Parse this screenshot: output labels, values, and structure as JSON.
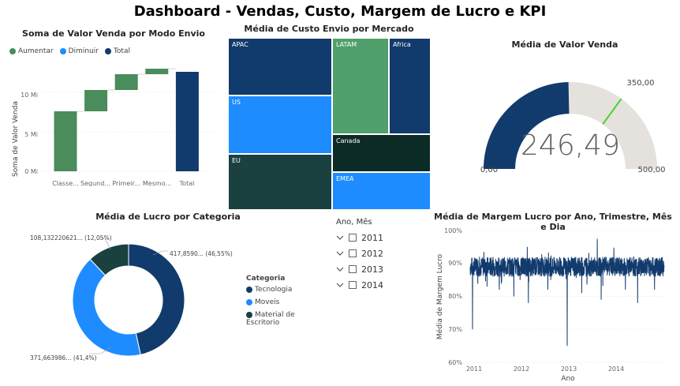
{
  "dashboard": {
    "title": "Dashboard - Vendas, Custo, Margem de Lucro e KPI"
  },
  "waterfall": {
    "title": "Soma de Valor Venda por Modo Envio",
    "legend": [
      {
        "label": "Aumentar",
        "color": "#4a8c5c"
      },
      {
        "label": "Diminuir",
        "color": "#1e8cff"
      },
      {
        "label": "Total",
        "color": "#123b6d"
      }
    ],
    "ylabel": "Soma de Valor Venda",
    "yticks": [
      "0 Mi",
      "5 Mi",
      "10 Mi"
    ],
    "xticks": [
      "Classe...",
      "Segund...",
      "Primeir...",
      "Mesmo...",
      "Total"
    ]
  },
  "treemap": {
    "title": "Média de Custo Envio por Mercado",
    "cells": [
      {
        "label": "APAC",
        "color": "#123b6d"
      },
      {
        "label": "LATAM",
        "color": "#4fa06a"
      },
      {
        "label": "Africa",
        "color": "#123b6d"
      },
      {
        "label": "US",
        "color": "#1e8cff"
      },
      {
        "label": "Canada",
        "color": "#0d2b26"
      },
      {
        "label": "EU",
        "color": "#1a4040"
      },
      {
        "label": "EMEA",
        "color": "#1e8cff"
      }
    ]
  },
  "gauge": {
    "title": "Média de Valor Venda",
    "value_label": "246,49",
    "min_label": "0,00",
    "max_label": "500,00",
    "target_label": "350,00",
    "value": 246.49,
    "min": 0,
    "max": 500,
    "target": 350,
    "fill_color": "#123b6d",
    "track_color": "#e5e1dc",
    "target_color": "#4cd137"
  },
  "donut": {
    "title": "Média de Lucro por Categoria",
    "legend_title": "Categoria",
    "slices": [
      {
        "name": "Tecnologia",
        "pct": 46.55,
        "color": "#123b6d",
        "label": "417,8590... (46,55%)"
      },
      {
        "name": "Moveis",
        "pct": 41.4,
        "color": "#1e8cff",
        "label": "371,663986... (41,4%)"
      },
      {
        "name": "Material de Escritorio",
        "pct": 12.05,
        "color": "#1a4040",
        "label": "108,132220621... (12,05%)"
      }
    ]
  },
  "slicer": {
    "title": "Ano, Mês",
    "items": [
      "2011",
      "2012",
      "2013",
      "2014"
    ]
  },
  "linechart": {
    "title": "Média de Margem Lucro por Ano, Trimestre, Mês e Dia",
    "ylabel": "Média de Margem Lucro",
    "xlabel": "Ano",
    "yticks": [
      "60%",
      "70%",
      "80%",
      "90%",
      "100%"
    ],
    "xticks": [
      "2011",
      "2012",
      "2013",
      "2014"
    ],
    "color": "#123b6d"
  },
  "chart_data": [
    {
      "type": "bar",
      "title": "Soma de Valor Venda por Modo Envio",
      "subtype": "waterfall",
      "categories": [
        "Classe...",
        "Segund...",
        "Primeir...",
        "Mesmo...",
        "Total"
      ],
      "values": [
        7.6,
        2.7,
        2.0,
        0.7,
        12.6
      ],
      "kind": [
        "increase",
        "increase",
        "increase",
        "increase",
        "total"
      ],
      "ylabel": "Soma de Valor Venda",
      "ylim": [
        0,
        14
      ]
    },
    {
      "type": "pie",
      "title": "Média de Lucro por Categoria",
      "categories": [
        "Tecnologia",
        "Moveis",
        "Material de Escritorio"
      ],
      "values": [
        46.55,
        41.4,
        12.05
      ]
    },
    {
      "type": "line",
      "title": "Média de Margem Lucro por Ano, Trimestre, Mês e Dia",
      "x": [
        "2011",
        "2012",
        "2013",
        "2014"
      ],
      "ylabel": "Média de Margem Lucro",
      "xlabel": "Ano",
      "ylim": [
        60,
        100
      ],
      "baseline": 89,
      "dips": [
        {
          "x": 2011.05,
          "y": 70
        },
        {
          "x": 2011.35,
          "y": 83
        },
        {
          "x": 2011.6,
          "y": 82
        },
        {
          "x": 2011.9,
          "y": 80
        },
        {
          "x": 2012.2,
          "y": 78
        },
        {
          "x": 2012.6,
          "y": 82
        },
        {
          "x": 2013.0,
          "y": 65
        },
        {
          "x": 2013.3,
          "y": 81
        },
        {
          "x": 2013.7,
          "y": 79
        },
        {
          "x": 2014.2,
          "y": 82
        },
        {
          "x": 2014.45,
          "y": 78
        },
        {
          "x": 2014.8,
          "y": 82
        }
      ]
    }
  ]
}
